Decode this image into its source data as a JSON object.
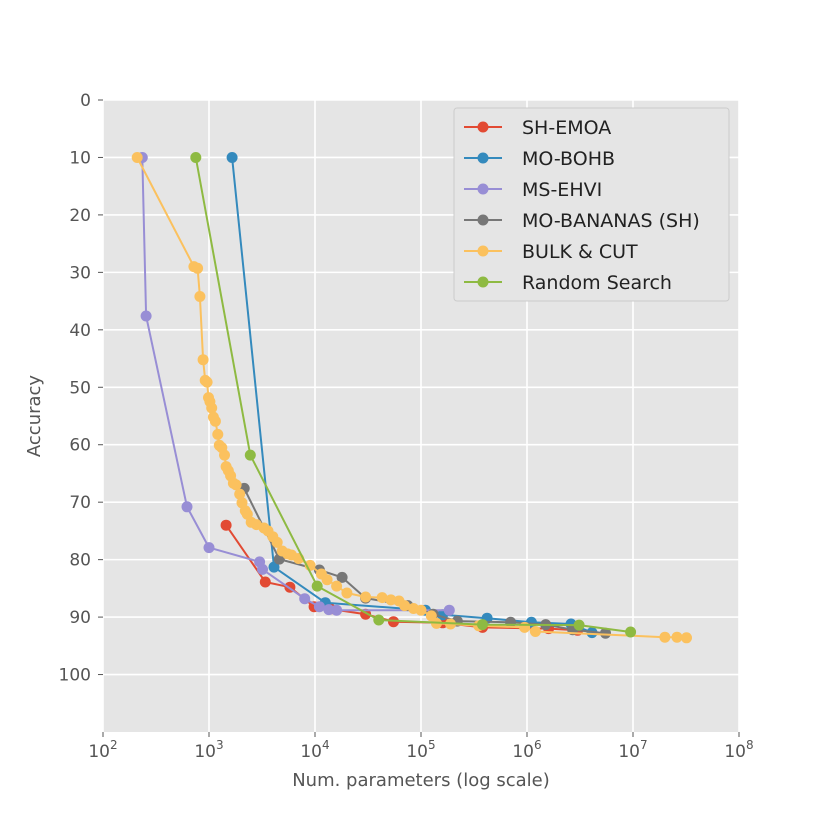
{
  "chart_data": {
    "type": "line",
    "title": "",
    "xlabel": "Num. parameters (log scale)",
    "ylabel": "Accuracy",
    "xscale": "log",
    "xlim": [
      100,
      100000000
    ],
    "ylim": [
      0,
      110
    ],
    "y_inverted": true,
    "x_ticks": [
      {
        "value": 100,
        "base": "10",
        "exp": "2"
      },
      {
        "value": 1000,
        "base": "10",
        "exp": "3"
      },
      {
        "value": 10000,
        "base": "10",
        "exp": "4"
      },
      {
        "value": 100000,
        "base": "10",
        "exp": "5"
      },
      {
        "value": 1000000,
        "base": "10",
        "exp": "6"
      },
      {
        "value": 10000000,
        "base": "10",
        "exp": "7"
      },
      {
        "value": 100000000,
        "base": "10",
        "exp": "8"
      }
    ],
    "y_ticks": [
      0,
      10,
      20,
      30,
      40,
      50,
      60,
      70,
      80,
      90,
      100
    ],
    "grid": true,
    "legend_position": "top-right",
    "series": [
      {
        "name": "SH-EMOA",
        "color": "#E24A33",
        "points": [
          [
            1450,
            74
          ],
          [
            3400,
            83.9
          ],
          [
            5800,
            84.8
          ],
          [
            9800,
            88.2
          ],
          [
            14000,
            88.6
          ],
          [
            30000,
            89.5
          ],
          [
            55000,
            90.8
          ],
          [
            160000,
            91
          ],
          [
            380000,
            91.8
          ],
          [
            1600000,
            92
          ],
          [
            3000000,
            92.3
          ]
        ]
      },
      {
        "name": "MO-BOHB",
        "color": "#348ABD",
        "points": [
          [
            1650,
            10
          ],
          [
            4100,
            81.3
          ],
          [
            12500,
            87.5
          ],
          [
            110000,
            88.8
          ],
          [
            160000,
            89.6
          ],
          [
            420000,
            90.2
          ],
          [
            1100000,
            90.9
          ],
          [
            2600000,
            91.2
          ],
          [
            4100000,
            92.7
          ]
        ]
      },
      {
        "name": "MS-EHVI",
        "color": "#988ED5",
        "points": [
          [
            235,
            10
          ],
          [
            255,
            37.6
          ],
          [
            620,
            70.8
          ],
          [
            1000,
            77.9
          ],
          [
            3000,
            80.4
          ],
          [
            3200,
            81.7
          ],
          [
            8000,
            86.8
          ],
          [
            11000,
            88.2
          ],
          [
            13500,
            88.7
          ],
          [
            16000,
            88.8
          ],
          [
            185000,
            88.8
          ]
        ]
      },
      {
        "name": "MO-BANANAS (SH)",
        "color": "#777777",
        "points": [
          [
            2150,
            67.6
          ],
          [
            4600,
            79.9
          ],
          [
            11000,
            81.8
          ],
          [
            18000,
            83.1
          ],
          [
            30000,
            86.7
          ],
          [
            75000,
            88
          ],
          [
            130000,
            89.5
          ],
          [
            220000,
            90.7
          ],
          [
            700000,
            90.9
          ],
          [
            1500000,
            91.3
          ],
          [
            2700000,
            92.2
          ],
          [
            5500000,
            92.8
          ]
        ]
      },
      {
        "name": "BULK & CUT",
        "color": "#FBC15E",
        "points": [
          [
            210,
            10
          ],
          [
            720,
            29
          ],
          [
            780,
            29.3
          ],
          [
            820,
            34.2
          ],
          [
            880,
            45.2
          ],
          [
            920,
            48.8
          ],
          [
            960,
            49.1
          ],
          [
            990,
            51.8
          ],
          [
            1020,
            52.5
          ],
          [
            1060,
            53.6
          ],
          [
            1100,
            55.2
          ],
          [
            1150,
            55.9
          ],
          [
            1210,
            58.2
          ],
          [
            1250,
            60.1
          ],
          [
            1320,
            60.5
          ],
          [
            1400,
            61.8
          ],
          [
            1450,
            63.8
          ],
          [
            1520,
            64.5
          ],
          [
            1600,
            65.4
          ],
          [
            1700,
            66.7
          ],
          [
            1800,
            67
          ],
          [
            1950,
            68.6
          ],
          [
            2050,
            70.1
          ],
          [
            2200,
            71.5
          ],
          [
            2300,
            72.1
          ],
          [
            2500,
            73.5
          ],
          [
            2800,
            73.9
          ],
          [
            3300,
            74.5
          ],
          [
            3600,
            75
          ],
          [
            4000,
            76
          ],
          [
            4400,
            77
          ],
          [
            4900,
            78.5
          ],
          [
            5500,
            79
          ],
          [
            6000,
            79.2
          ],
          [
            7000,
            79.8
          ],
          [
            9000,
            81
          ],
          [
            11500,
            82.5
          ],
          [
            13000,
            83.5
          ],
          [
            16000,
            84.6
          ],
          [
            20000,
            85.8
          ],
          [
            30000,
            86.5
          ],
          [
            43000,
            86.6
          ],
          [
            52000,
            87
          ],
          [
            62000,
            87.2
          ],
          [
            70000,
            88
          ],
          [
            85000,
            88.5
          ],
          [
            100000,
            88.8
          ],
          [
            125000,
            89.8
          ],
          [
            140000,
            91.1
          ],
          [
            190000,
            91.2
          ],
          [
            350000,
            91.5
          ],
          [
            950000,
            91.8
          ],
          [
            1200000,
            92.5
          ],
          [
            20000000,
            93.5
          ],
          [
            26000000,
            93.5
          ],
          [
            32000000,
            93.6
          ]
        ]
      },
      {
        "name": "Random Search",
        "color": "#8EBA42",
        "points": [
          [
            750,
            10
          ],
          [
            2450,
            61.8
          ],
          [
            10500,
            84.6
          ],
          [
            40000,
            90.5
          ],
          [
            380000,
            91.3
          ],
          [
            3100000,
            91.4
          ],
          [
            9500000,
            92.6
          ]
        ]
      }
    ]
  }
}
